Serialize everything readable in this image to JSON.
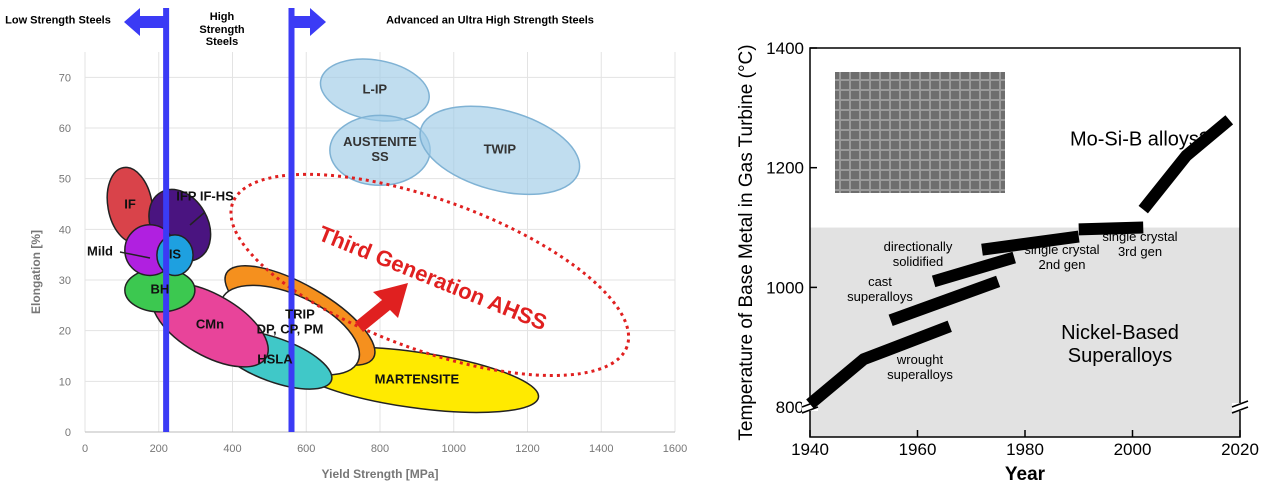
{
  "chart_data": [
    {
      "type": "region",
      "x_label": "Yield Strength [MPa]",
      "y_label": "Elongation [%]",
      "xlim": [
        0,
        1600
      ],
      "xticks": [
        0,
        200,
        400,
        600,
        800,
        1000,
        1200,
        1400,
        1600
      ],
      "ylim": [
        0,
        75
      ],
      "yticks": [
        0,
        10,
        20,
        30,
        40,
        50,
        60,
        70
      ],
      "grid": true,
      "zone_labels": [
        "Low Strength Steels",
        "High Strength Steels",
        "Advanced an Ultra High Strength Steels"
      ],
      "dividers": [
        220,
        560
      ],
      "divider_color": "#3b3bf5",
      "regions": [
        {
          "name": "L-IP",
          "color": "#9ecbe6",
          "x": 786,
          "y": 67.5,
          "rx": 149,
          "ry": 5.9,
          "angle": 10
        },
        {
          "name": "AUSTENITE SS",
          "color": "#9ecbe6",
          "x": 800,
          "y": 55.6,
          "rx": 136,
          "ry": 6.9,
          "angle": 0
        },
        {
          "name": "TWIP",
          "color": "#9ecbe6",
          "x": 1125,
          "y": 55.6,
          "rx": 222,
          "ry": 7.9,
          "angle": 15
        },
        {
          "name": "MARTENSITE",
          "color": "#ffea00",
          "x": 894,
          "y": 10.3,
          "rx": 339,
          "ry": 5.5,
          "angle": 8
        },
        {
          "name": "TRIP",
          "color": "#f5901e",
          "x": 583,
          "y": 23,
          "rx": 230,
          "ry": 5.9,
          "angle": 30
        },
        {
          "name": "DP, CP, PM",
          "color": "#ffffff",
          "x": 556,
          "y": 20.1,
          "rx": 203,
          "ry": 6.9,
          "angle": 25
        },
        {
          "name": "HSLA",
          "color": "#40c8c8",
          "x": 515,
          "y": 14.2,
          "rx": 163,
          "ry": 4.3,
          "angle": 20
        },
        {
          "name": "CMn",
          "color": "#e8449a",
          "x": 339,
          "y": 21.1,
          "rx": 176,
          "ry": 6,
          "angle": 30
        },
        {
          "name": "BH",
          "color": "#3cc850",
          "x": 203,
          "y": 28,
          "rx": 95,
          "ry": 4.3,
          "angle": 0
        },
        {
          "name": "IF",
          "color": "#d9434a",
          "x": 122,
          "y": 44.8,
          "rx": 60,
          "ry": 7.5,
          "angle": -10
        },
        {
          "name": "IFP IF-HS",
          "color": "#4a1480",
          "x": 257,
          "y": 40.8,
          "rx": 76,
          "ry": 7.5,
          "angle": -30
        },
        {
          "name": "Mild",
          "color": "#b020e0",
          "x": 176,
          "y": 35.9,
          "rx": 68,
          "ry": 5,
          "angle": 0
        },
        {
          "name": "IS",
          "color": "#1ea0e0",
          "x": 244,
          "y": 34.9,
          "rx": 49,
          "ry": 4,
          "angle": 0
        }
      ],
      "annotation": {
        "text": "Third Generation AHSS",
        "color": "#e02020",
        "x": 935,
        "y": 31,
        "rx": 569,
        "ry": 14.8,
        "angle": 20
      }
    },
    {
      "type": "line",
      "x_label": "Year",
      "y_label": "Temperature of Base Metal in Gas Turbine (°C)",
      "xlim": [
        1940,
        2020
      ],
      "xticks": [
        1940,
        1960,
        1980,
        2000,
        2020
      ],
      "ylim": [
        750,
        1400
      ],
      "yticks": [
        800,
        1000,
        1200,
        1400
      ],
      "shade_below": 1100,
      "shade_label": "Nickel-Based Superalloys",
      "series": [
        {
          "name": "wrought superalloys",
          "color": "#000000",
          "x": [
            1940,
            1950,
            1966
          ],
          "values": [
            805,
            880,
            935
          ]
        },
        {
          "name": "cast superalloys",
          "color": "#000000",
          "x": [
            1955,
            1975
          ],
          "values": [
            945,
            1010
          ]
        },
        {
          "name": "directionally solidified",
          "color": "#000000",
          "x": [
            1963,
            1978
          ],
          "values": [
            1010,
            1050
          ]
        },
        {
          "name": "single crystal 2nd gen",
          "color": "#000000",
          "x": [
            1972,
            1990
          ],
          "values": [
            1063,
            1085
          ]
        },
        {
          "name": "single crystal 3rd gen",
          "color": "#000000",
          "x": [
            1990,
            2002
          ],
          "values": [
            1097,
            1100
          ]
        },
        {
          "name": "Mo-Si-B alloys?",
          "color": "#000000",
          "x": [
            2002,
            2010,
            2018
          ],
          "values": [
            1130,
            1220,
            1280
          ]
        }
      ]
    }
  ]
}
